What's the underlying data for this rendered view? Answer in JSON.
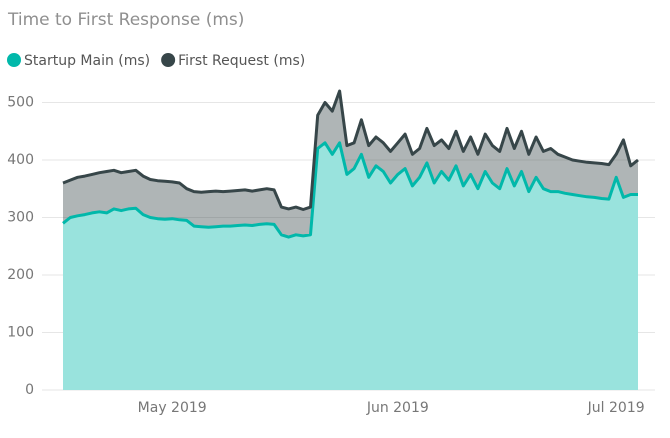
{
  "chart_data": {
    "type": "area",
    "title": "Time to First Response (ms)",
    "categories": [
      null,
      null,
      null,
      null,
      null,
      null,
      null,
      null,
      null,
      null,
      null,
      null,
      null,
      null,
      null,
      "May 2019",
      null,
      null,
      null,
      null,
      null,
      null,
      null,
      null,
      null,
      null,
      null,
      null,
      null,
      null,
      null,
      null,
      null,
      null,
      null,
      null,
      null,
      null,
      null,
      null,
      null,
      null,
      null,
      null,
      null,
      null,
      "Jun 2019",
      null,
      null,
      null,
      null,
      null,
      null,
      null,
      null,
      null,
      null,
      null,
      null,
      null,
      null,
      null,
      null,
      null,
      null,
      null,
      null,
      null,
      null,
      null,
      null,
      null,
      null,
      null,
      null,
      null,
      "Jul 2019",
      null,
      null,
      null
    ],
    "series": [
      {
        "name": "Startup Main (ms)",
        "color": "#01b8aa",
        "values": [
          290,
          300,
          303,
          305,
          308,
          310,
          308,
          315,
          312,
          315,
          316,
          305,
          300,
          298,
          297,
          298,
          296,
          295,
          285,
          284,
          283,
          284,
          285,
          285,
          286,
          287,
          286,
          288,
          289,
          288,
          270,
          266,
          270,
          268,
          270,
          420,
          430,
          410,
          430,
          375,
          385,
          410,
          370,
          390,
          380,
          360,
          375,
          385,
          355,
          370,
          395,
          360,
          380,
          365,
          390,
          355,
          375,
          350,
          380,
          360,
          350,
          385,
          355,
          380,
          345,
          370,
          350,
          345,
          345,
          342,
          340,
          338,
          336,
          335,
          333,
          332,
          370,
          335,
          340,
          340
        ]
      },
      {
        "name": "First Request (ms)",
        "color": "#374649",
        "values": [
          360,
          365,
          370,
          372,
          375,
          378,
          380,
          382,
          378,
          380,
          382,
          372,
          366,
          364,
          363,
          362,
          360,
          350,
          345,
          344,
          345,
          346,
          345,
          346,
          347,
          348,
          346,
          348,
          350,
          348,
          318,
          315,
          318,
          314,
          318,
          478,
          500,
          485,
          520,
          425,
          430,
          470,
          425,
          440,
          430,
          415,
          430,
          445,
          410,
          420,
          455,
          425,
          435,
          420,
          450,
          415,
          440,
          410,
          445,
          425,
          415,
          455,
          420,
          450,
          410,
          440,
          415,
          420,
          410,
          405,
          400,
          398,
          396,
          395,
          394,
          392,
          410,
          435,
          390,
          400
        ]
      }
    ],
    "ylim": [
      0,
      520
    ],
    "yticks": [
      0,
      100,
      200,
      300,
      400,
      500
    ],
    "grid": true,
    "legend": "top-left"
  }
}
